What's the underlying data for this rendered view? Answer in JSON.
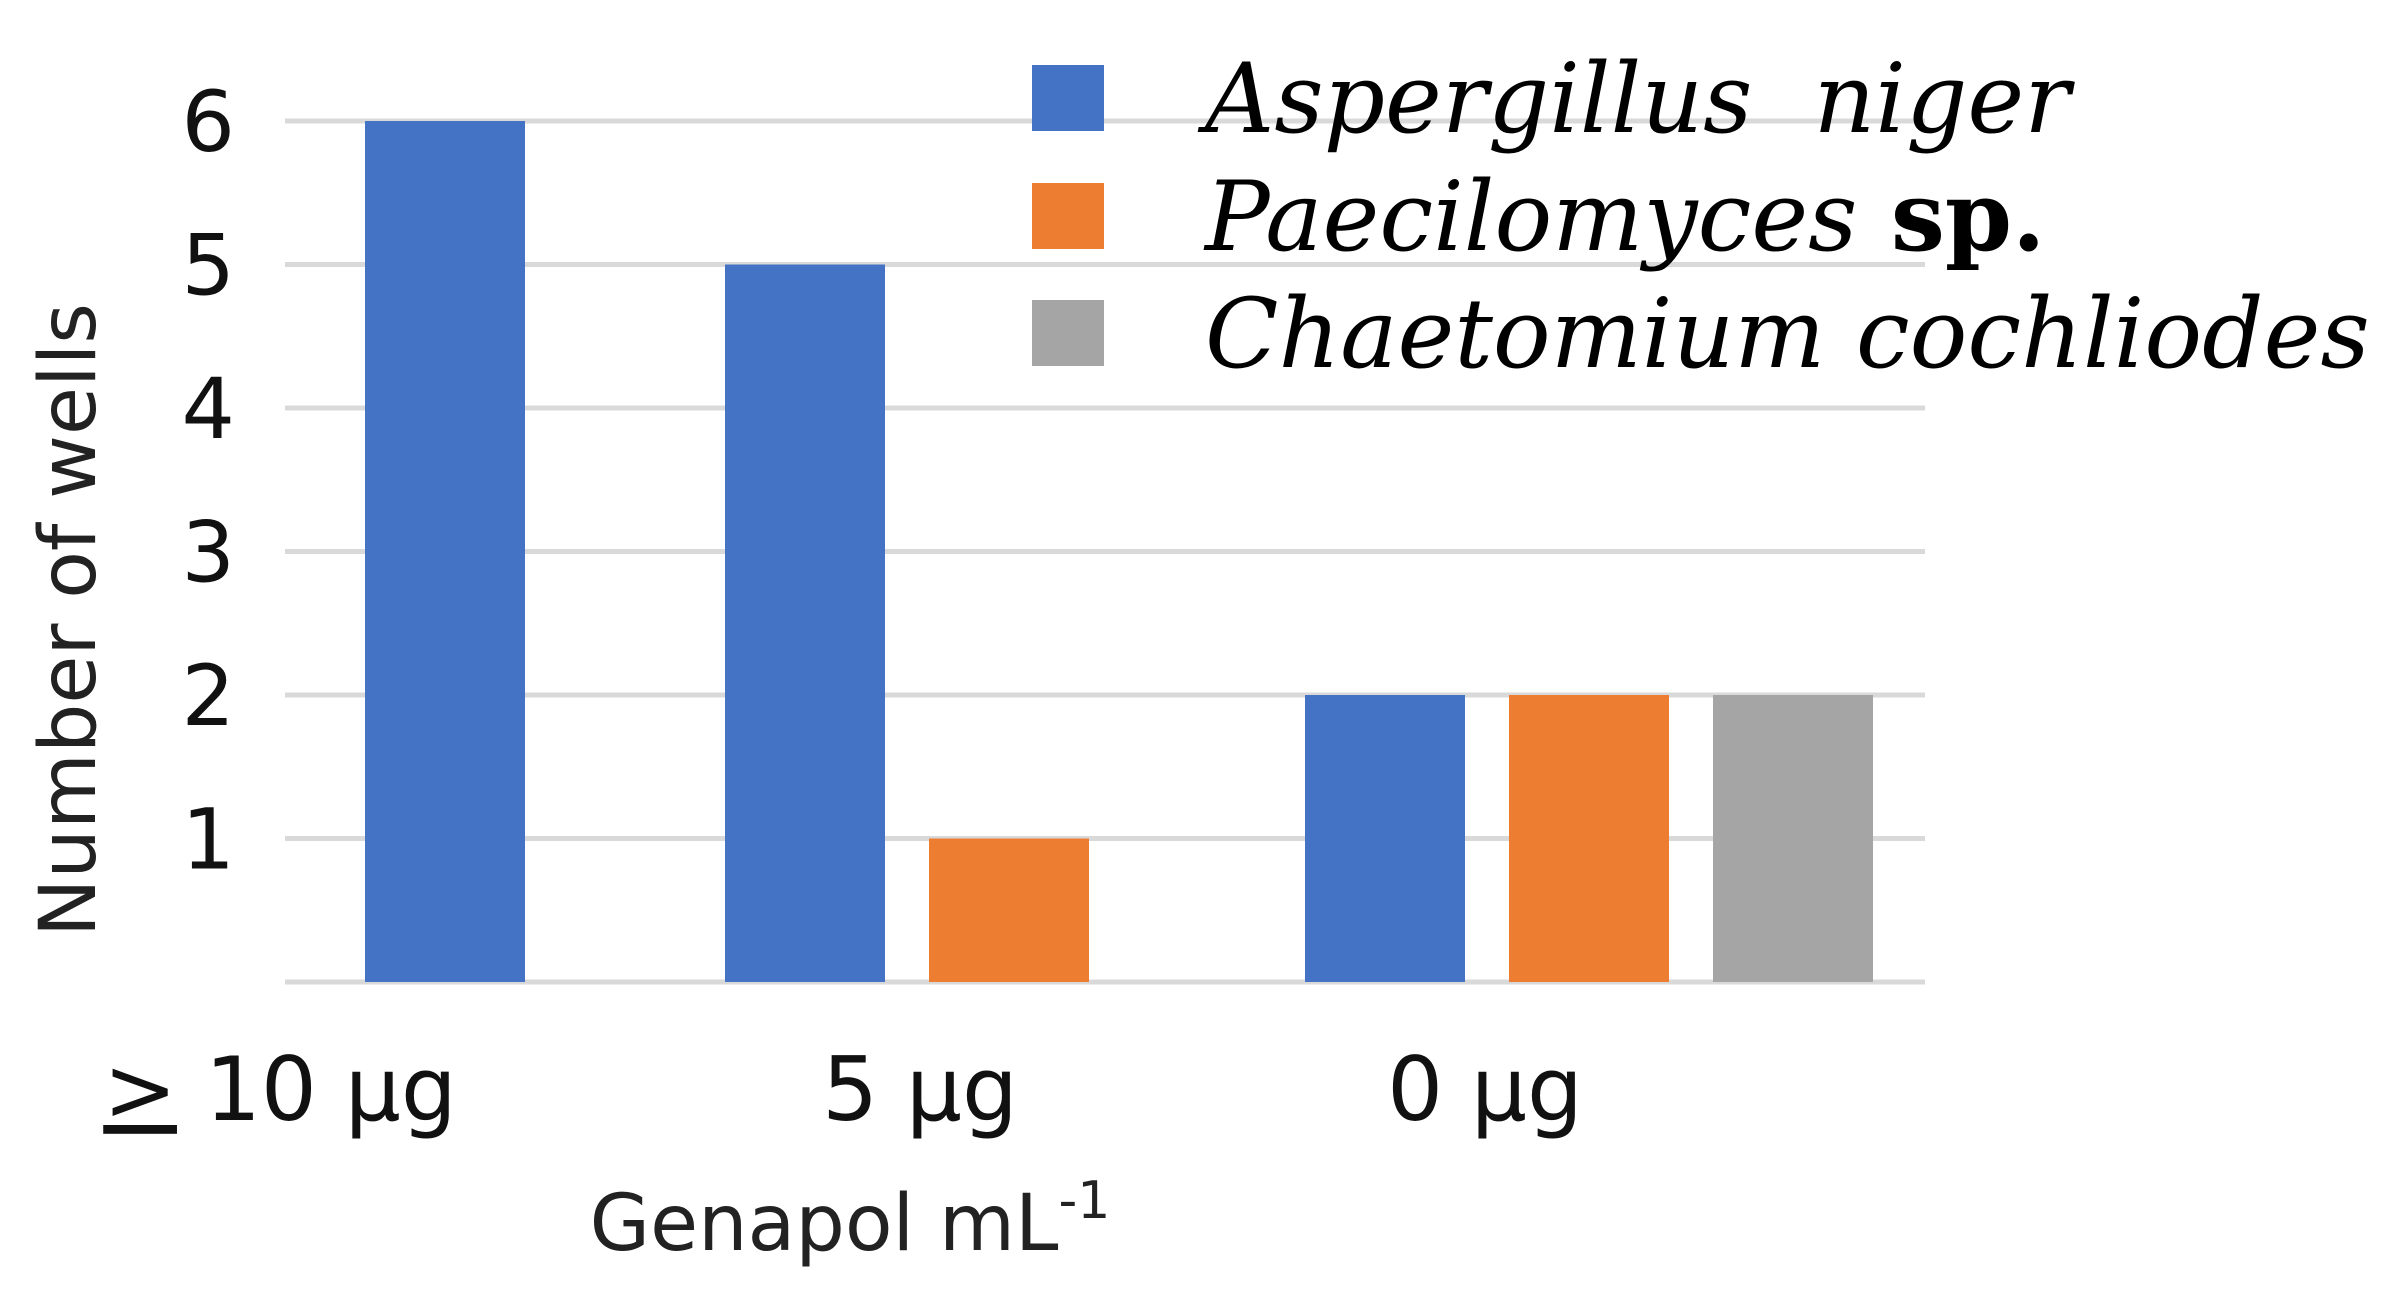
{
  "chart_data": {
    "type": "bar",
    "title": "",
    "xlabel": "Genapol mL",
    "xlabel_superscript": "-1",
    "ylabel": "Number of wells",
    "categories": [
      "> 10 µg",
      "5 µg",
      "0 µg"
    ],
    "series": [
      {
        "name": "Aspergillus  niger",
        "name_italic": "Aspergillus  niger",
        "name_plain": "",
        "color": "#4472C4",
        "values": [
          6,
          5,
          2
        ]
      },
      {
        "name": "Paecilomyces sp.",
        "name_italic": "Paecilomyces",
        "name_plain": " sp.",
        "color": "#ED7D31",
        "values": [
          0,
          1,
          2
        ]
      },
      {
        "name": "Chaetomium cochliodes",
        "name_italic": "Chaetomium cochliodes",
        "name_plain": "",
        "color": "#A5A5A5",
        "values": [
          0,
          0,
          2
        ]
      }
    ],
    "ylim": [
      0,
      6
    ],
    "yticks": [
      "1",
      "2",
      "3",
      "4",
      "5",
      "6"
    ],
    "grid": true,
    "legend_position": "top-right",
    "gridline_color": "#D9D9D9"
  }
}
